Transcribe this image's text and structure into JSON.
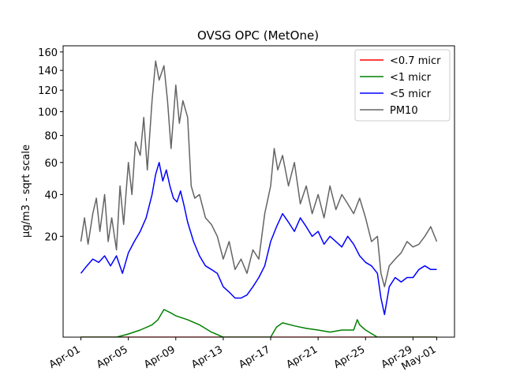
{
  "chart_data": {
    "type": "line",
    "title": "OVSG OPC (MetOne)",
    "xlabel": "",
    "ylabel": "μg/m3 - sqrt scale",
    "y_scale": "sqrt",
    "ylim": [
      0,
      167
    ],
    "yticks": [
      {
        "value": 20,
        "label": "20"
      },
      {
        "value": 40,
        "label": "40"
      },
      {
        "value": 60,
        "label": "60"
      },
      {
        "value": 80,
        "label": "80"
      },
      {
        "value": 100,
        "label": "100"
      },
      {
        "value": 120,
        "label": "120"
      },
      {
        "value": 140,
        "label": "140"
      },
      {
        "value": 160,
        "label": "160"
      }
    ],
    "x_range_days": [
      -1.5,
      31.5
    ],
    "xticks": [
      {
        "day": 0,
        "label": "Apr-01"
      },
      {
        "day": 4,
        "label": "Apr-05"
      },
      {
        "day": 8,
        "label": "Apr-09"
      },
      {
        "day": 12,
        "label": "Apr-13"
      },
      {
        "day": 16,
        "label": "Apr-17"
      },
      {
        "day": 20,
        "label": "Apr-21"
      },
      {
        "day": 24,
        "label": "Apr-25"
      },
      {
        "day": 28,
        "label": "Apr-29"
      },
      {
        "day": 30,
        "label": "May-01"
      }
    ],
    "legend_position": "top-right",
    "grid": false,
    "series": [
      {
        "name": "<0.7 micr",
        "color": "#ff0000",
        "x": [
          0,
          30
        ],
        "values": [
          0,
          0
        ]
      },
      {
        "name": "<1 micr",
        "color": "#008000",
        "x": [
          0,
          3,
          4,
          5,
          6,
          6.5,
          7,
          7.5,
          8,
          9,
          10,
          11,
          12,
          14,
          15,
          16,
          16.5,
          17,
          18,
          19,
          20,
          21,
          22,
          23,
          23.3,
          23.5,
          24,
          25,
          26,
          28,
          30
        ],
        "values": [
          0,
          0,
          0.02,
          0.1,
          0.3,
          0.6,
          1.5,
          1.2,
          0.9,
          0.6,
          0.3,
          0.05,
          0,
          0,
          0,
          0,
          0.2,
          0.4,
          0.25,
          0.15,
          0.1,
          0.05,
          0.1,
          0.1,
          0.6,
          0.3,
          0.1,
          0,
          0,
          0,
          0
        ]
      },
      {
        "name": "<5 micr",
        "color": "#0000ff",
        "x": [
          0,
          0.5,
          1,
          1.5,
          2,
          2.5,
          3,
          3.5,
          4,
          4.5,
          5,
          5.5,
          6,
          6.3,
          6.6,
          6.9,
          7.2,
          7.5,
          7.8,
          8.1,
          8.4,
          8.7,
          9,
          9.5,
          10,
          10.5,
          11,
          11.5,
          12,
          12.5,
          13,
          13.5,
          14,
          14.5,
          15,
          15.5,
          16,
          16.5,
          17,
          17.5,
          18,
          18.5,
          19,
          19.5,
          20,
          20.5,
          21,
          21.5,
          22,
          22.5,
          23,
          23.5,
          24,
          24.5,
          25,
          25.3,
          25.6,
          26,
          26.5,
          27,
          27.5,
          28,
          28.5,
          29,
          29.5,
          30
        ],
        "values": [
          8,
          10,
          12,
          11,
          13,
          10,
          13,
          8,
          14,
          18,
          22,
          28,
          40,
          52,
          60,
          48,
          55,
          45,
          38,
          36,
          42,
          34,
          26,
          18,
          13,
          10,
          9,
          8,
          5,
          4,
          3,
          3,
          3.5,
          5,
          7,
          10,
          18,
          24,
          30,
          26,
          22,
          28,
          24,
          20,
          22,
          17,
          20,
          18,
          16,
          20,
          17,
          13,
          11,
          10,
          8,
          3,
          1,
          5,
          7,
          6,
          7,
          7,
          9,
          10,
          9,
          9
        ]
      },
      {
        "name": "PM10",
        "color": "#646464",
        "x": [
          0,
          0.3,
          0.6,
          1,
          1.3,
          1.6,
          2,
          2.3,
          2.6,
          3,
          3.3,
          3.6,
          4,
          4.3,
          4.6,
          5,
          5.3,
          5.6,
          6,
          6.3,
          6.6,
          7,
          7.3,
          7.6,
          8,
          8.3,
          8.6,
          9,
          9.3,
          9.6,
          10,
          10.5,
          11,
          11.5,
          12,
          12.5,
          13,
          13.5,
          14,
          14.5,
          15,
          15.5,
          16,
          16.3,
          16.6,
          17,
          17.5,
          18,
          18.5,
          19,
          19.5,
          20,
          20.5,
          21,
          21.5,
          22,
          22.5,
          23,
          23.5,
          24,
          24.5,
          25,
          25.3,
          25.6,
          26,
          26.5,
          27,
          27.5,
          28,
          28.5,
          29,
          29.5,
          30
        ],
        "values": [
          18,
          28,
          17,
          30,
          38,
          22,
          40,
          18,
          28,
          15,
          45,
          25,
          60,
          40,
          75,
          65,
          95,
          55,
          110,
          150,
          130,
          145,
          110,
          70,
          125,
          90,
          110,
          95,
          45,
          38,
          40,
          28,
          25,
          20,
          12,
          18,
          9,
          12,
          8,
          15,
          12,
          30,
          45,
          70,
          55,
          65,
          45,
          60,
          35,
          45,
          30,
          40,
          28,
          45,
          32,
          40,
          35,
          30,
          38,
          28,
          18,
          20,
          8,
          5,
          10,
          12,
          14,
          18,
          16,
          17,
          20,
          24,
          18
        ]
      }
    ]
  }
}
